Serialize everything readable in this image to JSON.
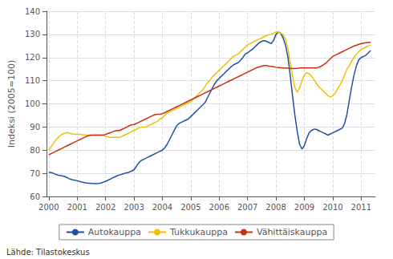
{
  "chart_data": {
    "type": "line",
    "ylabel": "Indeksi (2005=100)",
    "annotations": [
      "Lähde: Tilastokeskus"
    ],
    "xlim": [
      1999.92,
      2011.5
    ],
    "xticks": [
      2000,
      2001,
      2002,
      2003,
      2004,
      2005,
      2006,
      2007,
      2008,
      2009,
      2010,
      2011
    ],
    "ylim": [
      60,
      140
    ],
    "yticks": [
      60,
      70,
      80,
      90,
      100,
      110,
      120,
      130,
      140
    ],
    "grid": true,
    "legend": "bottom",
    "x": [
      2000.0,
      2000.083,
      2000.167,
      2000.25,
      2000.333,
      2000.417,
      2000.5,
      2000.583,
      2000.667,
      2000.75,
      2000.833,
      2000.917,
      2001.0,
      2001.083,
      2001.167,
      2001.25,
      2001.333,
      2001.417,
      2001.5,
      2001.583,
      2001.667,
      2001.75,
      2001.833,
      2001.917,
      2002.0,
      2002.083,
      2002.167,
      2002.25,
      2002.333,
      2002.417,
      2002.5,
      2002.583,
      2002.667,
      2002.75,
      2002.833,
      2002.917,
      2003.0,
      2003.083,
      2003.167,
      2003.25,
      2003.333,
      2003.417,
      2003.5,
      2003.583,
      2003.667,
      2003.75,
      2003.833,
      2003.917,
      2004.0,
      2004.083,
      2004.167,
      2004.25,
      2004.333,
      2004.417,
      2004.5,
      2004.583,
      2004.667,
      2004.75,
      2004.833,
      2004.917,
      2005.0,
      2005.083,
      2005.167,
      2005.25,
      2005.333,
      2005.417,
      2005.5,
      2005.583,
      2005.667,
      2005.75,
      2005.833,
      2005.917,
      2006.0,
      2006.083,
      2006.167,
      2006.25,
      2006.333,
      2006.417,
      2006.5,
      2006.583,
      2006.667,
      2006.75,
      2006.833,
      2006.917,
      2007.0,
      2007.083,
      2007.167,
      2007.25,
      2007.333,
      2007.417,
      2007.5,
      2007.583,
      2007.667,
      2007.75,
      2007.833,
      2007.917,
      2008.0,
      2008.083,
      2008.167,
      2008.25,
      2008.333,
      2008.417,
      2008.5,
      2008.583,
      2008.667,
      2008.75,
      2008.833,
      2008.917,
      2009.0,
      2009.083,
      2009.167,
      2009.25,
      2009.333,
      2009.417,
      2009.5,
      2009.583,
      2009.667,
      2009.75,
      2009.833,
      2009.917,
      2010.0,
      2010.083,
      2010.167,
      2010.25,
      2010.333,
      2010.417,
      2010.5,
      2010.583,
      2010.667,
      2010.75,
      2010.833,
      2010.917,
      2011.0,
      2011.083,
      2011.167,
      2011.25,
      2011.333
    ],
    "series": [
      {
        "name": "Autokauppa",
        "color": "#2050a0",
        "values": [
          70.5,
          70.3,
          70.0,
          69.5,
          69.2,
          69.0,
          68.8,
          68.5,
          68.0,
          67.5,
          67.2,
          67.0,
          66.8,
          66.5,
          66.2,
          66.0,
          65.8,
          65.7,
          65.6,
          65.5,
          65.5,
          65.6,
          65.8,
          66.2,
          66.5,
          67.0,
          67.5,
          68.0,
          68.5,
          69.0,
          69.3,
          69.6,
          70.0,
          70.2,
          70.5,
          71.0,
          71.5,
          73.0,
          74.5,
          75.5,
          76.0,
          76.5,
          77.0,
          77.5,
          78.0,
          78.5,
          79.0,
          79.5,
          80.0,
          81.0,
          82.5,
          84.5,
          86.5,
          88.5,
          90.5,
          91.5,
          92.0,
          92.5,
          93.0,
          93.5,
          94.5,
          95.5,
          96.5,
          97.5,
          98.5,
          99.5,
          100.5,
          102.5,
          104.5,
          106.5,
          108.5,
          110.0,
          111.0,
          112.0,
          113.0,
          114.0,
          115.0,
          116.0,
          116.8,
          117.3,
          117.8,
          118.8,
          120.0,
          121.5,
          122.0,
          122.8,
          123.5,
          124.5,
          125.5,
          126.5,
          127.0,
          127.3,
          127.0,
          126.5,
          126.0,
          127.5,
          130.0,
          131.0,
          130.5,
          128.5,
          125.5,
          120.5,
          112.5,
          103.5,
          95.0,
          88.0,
          82.5,
          80.5,
          82.0,
          85.0,
          87.5,
          88.5,
          89.0,
          89.0,
          88.5,
          88.0,
          87.5,
          87.0,
          86.5,
          87.0,
          87.5,
          88.0,
          88.5,
          89.0,
          89.5,
          91.5,
          95.5,
          101.5,
          107.5,
          112.5,
          116.5,
          119.0,
          120.0,
          120.5,
          121.0,
          122.0,
          123.0
        ]
      },
      {
        "name": "Tukkukauppa",
        "color": "#f0c000",
        "values": [
          80.0,
          81.5,
          83.0,
          84.5,
          85.5,
          86.5,
          87.0,
          87.5,
          87.5,
          87.3,
          87.0,
          86.8,
          86.8,
          86.8,
          86.7,
          86.6,
          86.5,
          86.5,
          86.5,
          86.5,
          86.5,
          86.5,
          86.5,
          86.5,
          86.0,
          85.8,
          85.5,
          85.5,
          85.5,
          85.5,
          85.5,
          86.0,
          86.5,
          87.0,
          87.5,
          88.0,
          88.5,
          89.0,
          89.5,
          90.0,
          90.0,
          90.0,
          90.5,
          91.0,
          91.5,
          92.0,
          92.5,
          93.5,
          94.0,
          95.0,
          96.0,
          96.5,
          97.0,
          97.5,
          98.0,
          98.5,
          99.0,
          99.5,
          100.0,
          100.5,
          101.0,
          102.0,
          103.0,
          104.0,
          105.0,
          106.0,
          107.5,
          109.0,
          110.0,
          111.5,
          112.5,
          113.5,
          114.5,
          115.5,
          116.5,
          117.5,
          118.5,
          119.5,
          120.5,
          121.0,
          121.5,
          122.5,
          123.5,
          124.5,
          125.5,
          126.0,
          126.5,
          127.0,
          127.5,
          128.0,
          128.5,
          129.0,
          129.5,
          129.8,
          130.0,
          130.5,
          131.0,
          131.0,
          130.5,
          130.0,
          128.0,
          124.0,
          118.0,
          112.0,
          107.0,
          105.0,
          107.0,
          110.0,
          112.5,
          113.5,
          113.0,
          112.0,
          110.5,
          109.0,
          107.5,
          106.5,
          105.5,
          104.5,
          103.5,
          103.0,
          103.5,
          104.5,
          106.5,
          108.0,
          110.0,
          112.5,
          115.0,
          116.5,
          118.5,
          120.0,
          121.5,
          122.5,
          123.5,
          124.0,
          124.5,
          125.0,
          125.5
        ]
      },
      {
        "name": "Vähittäiskauppa",
        "color": "#c83010",
        "values": [
          78.0,
          78.5,
          79.0,
          79.5,
          80.0,
          80.5,
          81.0,
          81.5,
          82.0,
          82.5,
          83.0,
          83.5,
          84.0,
          84.5,
          85.0,
          85.5,
          86.0,
          86.3,
          86.5,
          86.5,
          86.5,
          86.5,
          86.5,
          86.5,
          86.8,
          87.2,
          87.5,
          88.0,
          88.3,
          88.5,
          88.5,
          89.0,
          89.5,
          90.0,
          90.5,
          91.0,
          91.0,
          91.5,
          92.0,
          92.5,
          93.0,
          93.5,
          94.0,
          94.5,
          95.0,
          95.3,
          95.5,
          95.5,
          95.8,
          96.2,
          96.7,
          97.2,
          97.7,
          98.2,
          98.7,
          99.2,
          99.7,
          100.2,
          100.7,
          101.2,
          101.7,
          102.2,
          102.7,
          103.2,
          103.7,
          104.2,
          104.7,
          105.2,
          105.7,
          106.2,
          106.7,
          107.2,
          107.7,
          108.2,
          108.7,
          109.2,
          109.7,
          110.2,
          110.7,
          111.2,
          111.7,
          112.2,
          112.7,
          113.2,
          113.7,
          114.2,
          114.7,
          115.2,
          115.7,
          116.0,
          116.3,
          116.5,
          116.5,
          116.3,
          116.2,
          116.0,
          115.8,
          115.7,
          115.6,
          115.5,
          115.5,
          115.4,
          115.3,
          115.2,
          115.2,
          115.3,
          115.5,
          115.5,
          115.5,
          115.5,
          115.5,
          115.5,
          115.5,
          115.5,
          115.8,
          116.2,
          116.8,
          117.5,
          118.5,
          119.5,
          120.5,
          121.0,
          121.5,
          122.0,
          122.5,
          123.0,
          123.5,
          124.0,
          124.5,
          125.0,
          125.3,
          125.7,
          126.0,
          126.2,
          126.4,
          126.5,
          126.6
        ]
      }
    ]
  }
}
